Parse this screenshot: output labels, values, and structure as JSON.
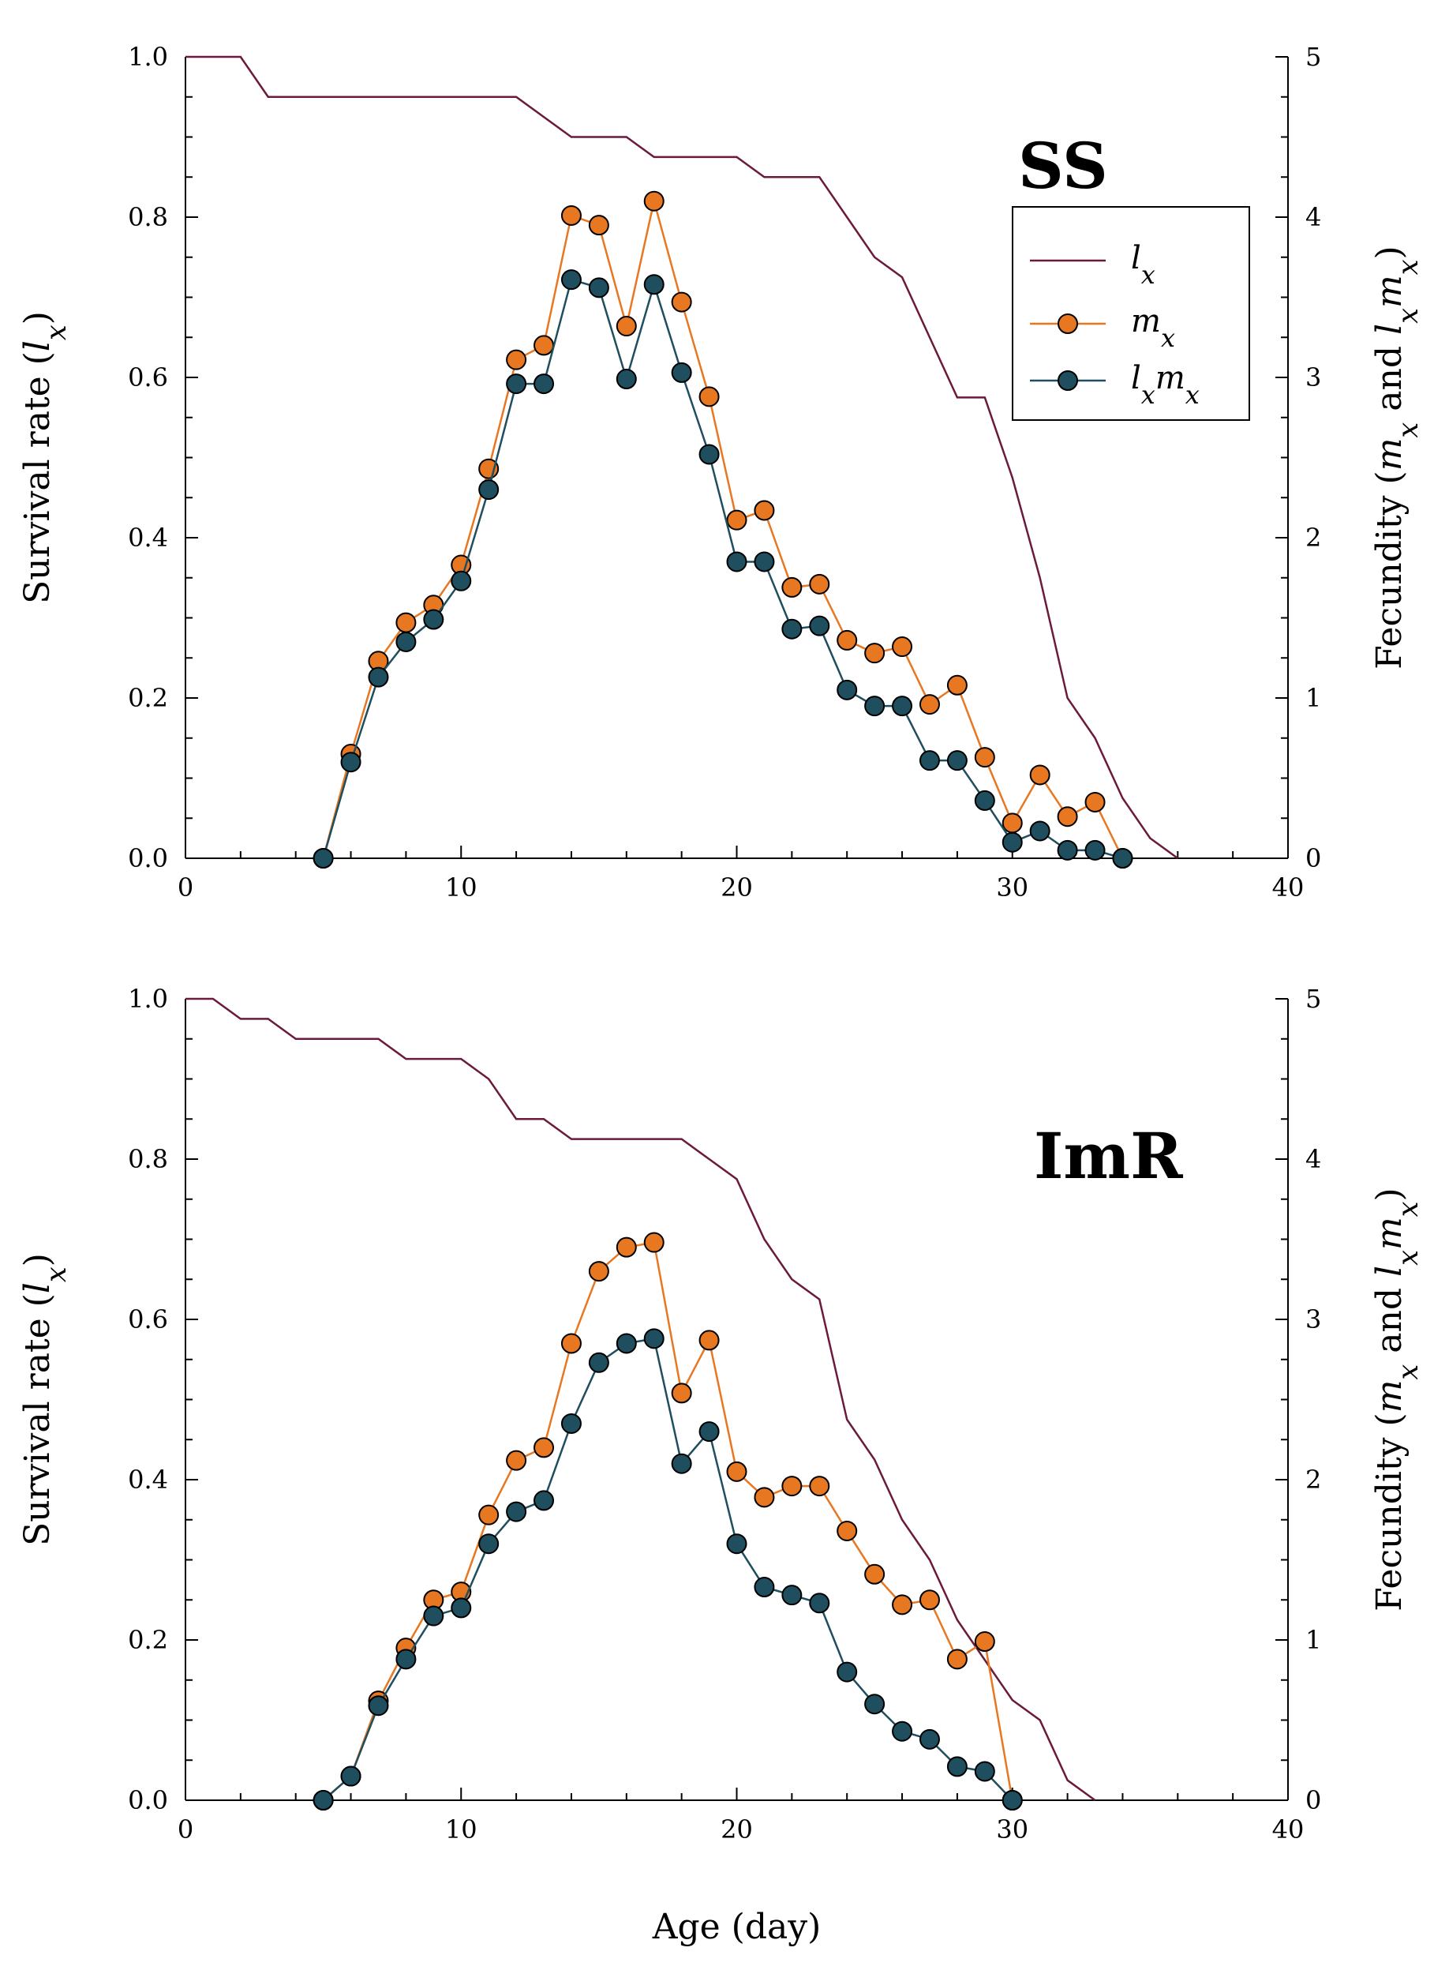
{
  "chart_data": [
    {
      "type": "line",
      "panel_label": "SS",
      "xlabel": "",
      "ylabel_left": "Survival rate (lx)",
      "ylabel_right": "Fecundity (mx and lxmx)",
      "xlim": [
        0,
        40
      ],
      "ylim_left": [
        0,
        1.0
      ],
      "ylim_right": [
        0,
        5
      ],
      "x_ticks": [
        "0",
        "10",
        "20",
        "30",
        "40"
      ],
      "y_left_ticks": [
        "0.0",
        "0.2",
        "0.4",
        "0.6",
        "0.8",
        "1.0"
      ],
      "y_right_ticks": [
        "0",
        "1",
        "2",
        "3",
        "4",
        "5"
      ],
      "legend": {
        "position": "top-right",
        "entries": [
          "lx",
          "mx",
          "lxmx"
        ]
      },
      "series": [
        {
          "name": "lx",
          "axis": "left",
          "color": "#6b1a3d",
          "x": [
            0,
            2,
            3,
            12,
            14,
            16,
            17,
            20,
            21,
            23,
            24,
            25,
            26,
            27,
            28,
            29,
            30,
            31,
            32,
            33,
            34,
            35,
            36
          ],
          "values": [
            1.0,
            1.0,
            0.95,
            0.95,
            0.9,
            0.9,
            0.875,
            0.875,
            0.85,
            0.85,
            0.8,
            0.75,
            0.725,
            0.65,
            0.575,
            0.575,
            0.475,
            0.35,
            0.2,
            0.15,
            0.075,
            0.025,
            0.0
          ]
        },
        {
          "name": "mx",
          "axis": "right",
          "color": "#e87722",
          "x": [
            5,
            6,
            7,
            8,
            9,
            10,
            11,
            12,
            13,
            14,
            15,
            16,
            17,
            18,
            19,
            20,
            21,
            22,
            23,
            24,
            25,
            26,
            27,
            28,
            29,
            30,
            31,
            32,
            33,
            34
          ],
          "values": [
            0,
            0.65,
            1.23,
            1.47,
            1.58,
            1.83,
            2.43,
            3.11,
            3.2,
            4.01,
            3.95,
            3.32,
            4.1,
            3.47,
            2.88,
            2.11,
            2.17,
            1.69,
            1.71,
            1.36,
            1.28,
            1.32,
            0.96,
            1.08,
            0.63,
            0.22,
            0.52,
            0.26,
            0.35,
            0
          ]
        },
        {
          "name": "lxmx",
          "axis": "right",
          "color": "#1f4e5f",
          "x": [
            5,
            6,
            7,
            8,
            9,
            10,
            11,
            12,
            13,
            14,
            15,
            16,
            17,
            18,
            19,
            20,
            21,
            22,
            23,
            24,
            25,
            26,
            27,
            28,
            29,
            30,
            31,
            32,
            33,
            34
          ],
          "values": [
            0,
            0.6,
            1.13,
            1.35,
            1.49,
            1.73,
            2.3,
            2.96,
            2.96,
            3.61,
            3.56,
            2.99,
            3.58,
            3.03,
            2.52,
            1.85,
            1.85,
            1.43,
            1.45,
            1.05,
            0.95,
            0.95,
            0.61,
            0.61,
            0.36,
            0.1,
            0.17,
            0.05,
            0.05,
            0
          ]
        }
      ]
    },
    {
      "type": "line",
      "panel_label": "ImR",
      "xlabel": "Age (day)",
      "ylabel_left": "Survival rate (lx)",
      "ylabel_right": "Fecundity (mx and lxmx)",
      "xlim": [
        0,
        40
      ],
      "ylim_left": [
        0,
        1.0
      ],
      "ylim_right": [
        0,
        5
      ],
      "x_ticks": [
        "0",
        "10",
        "20",
        "30",
        "40"
      ],
      "y_left_ticks": [
        "0.0",
        "0.2",
        "0.4",
        "0.6",
        "0.8",
        "1.0"
      ],
      "y_right_ticks": [
        "0",
        "1",
        "2",
        "3",
        "4",
        "5"
      ],
      "legend": {
        "position": "none",
        "entries": []
      },
      "series": [
        {
          "name": "lx",
          "axis": "left",
          "color": "#6b1a3d",
          "x": [
            0,
            1,
            2,
            3,
            4,
            7,
            8,
            10,
            11,
            12,
            13,
            14,
            18,
            19,
            20,
            21,
            22,
            23,
            24,
            25,
            26,
            27,
            28,
            29,
            30,
            31,
            32,
            33
          ],
          "values": [
            1.0,
            1.0,
            0.975,
            0.975,
            0.95,
            0.95,
            0.925,
            0.925,
            0.9,
            0.85,
            0.85,
            0.825,
            0.825,
            0.8,
            0.775,
            0.7,
            0.65,
            0.625,
            0.475,
            0.425,
            0.35,
            0.3,
            0.225,
            0.175,
            0.125,
            0.1,
            0.025,
            0.0
          ]
        },
        {
          "name": "mx",
          "axis": "right",
          "color": "#e87722",
          "x": [
            5,
            6,
            7,
            8,
            9,
            10,
            11,
            12,
            13,
            14,
            15,
            16,
            17,
            18,
            19,
            20,
            21,
            22,
            23,
            24,
            25,
            26,
            27,
            28,
            29,
            30
          ],
          "values": [
            0,
            0.15,
            0.62,
            0.95,
            1.25,
            1.3,
            1.78,
            2.12,
            2.2,
            2.85,
            3.3,
            3.45,
            3.48,
            2.54,
            2.87,
            2.05,
            1.89,
            1.96,
            1.96,
            1.68,
            1.41,
            1.22,
            1.25,
            0.88,
            0.99,
            0
          ]
        },
        {
          "name": "lxmx",
          "axis": "right",
          "color": "#1f4e5f",
          "x": [
            5,
            6,
            7,
            8,
            9,
            10,
            11,
            12,
            13,
            14,
            15,
            16,
            17,
            18,
            19,
            20,
            21,
            22,
            23,
            24,
            25,
            26,
            27,
            28,
            29,
            30
          ],
          "values": [
            0,
            0.15,
            0.59,
            0.88,
            1.15,
            1.2,
            1.6,
            1.8,
            1.87,
            2.35,
            2.73,
            2.85,
            2.88,
            2.1,
            2.3,
            1.6,
            1.33,
            1.28,
            1.23,
            0.8,
            0.6,
            0.43,
            0.38,
            0.21,
            0.18,
            0
          ]
        }
      ]
    }
  ],
  "legend_labels": {
    "lx": "lx",
    "mx": "mx",
    "lxmx": "lxmx"
  }
}
